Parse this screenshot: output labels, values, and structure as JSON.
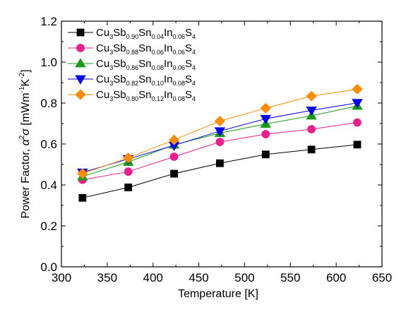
{
  "chart_data": {
    "type": "line",
    "xlabel": "Temperature [K]",
    "ylabel_prefix": "Power Factor, ",
    "ylabel_symbol": "α",
    "ylabel_symbol_sup": "2",
    "ylabel_symbol2": "σ",
    "ylabel_unit_open": " [mWm",
    "ylabel_unit_sup1": "-1",
    "ylabel_unit_mid": "K",
    "ylabel_unit_sup2": "-2",
    "ylabel_unit_close": "]",
    "xlim": [
      300,
      650
    ],
    "ylim": [
      0.0,
      1.2
    ],
    "xticks": [
      300,
      350,
      400,
      450,
      500,
      550,
      600,
      650
    ],
    "yticks": [
      "0.0",
      "0.2",
      "0.4",
      "0.6",
      "0.8",
      "1.0",
      "1.2"
    ],
    "grid": false,
    "legend_position": "top-left",
    "x": [
      323,
      373,
      423,
      473,
      523,
      573,
      623
    ],
    "series": [
      {
        "name": "Cu3Sb0.90Sn0.04In0.06S4",
        "name_parts": [
          [
            "Cu",
            ""
          ],
          [
            "3",
            "sub"
          ],
          [
            "Sb",
            ""
          ],
          [
            "0.90",
            "sub"
          ],
          [
            "Sn",
            ""
          ],
          [
            "0.04",
            "sub"
          ],
          [
            "In",
            ""
          ],
          [
            "0.06",
            "sub"
          ],
          [
            "S",
            ""
          ],
          [
            "4",
            "sub"
          ]
        ],
        "color": "#000000",
        "marker": "square",
        "values": [
          0.337,
          0.388,
          0.455,
          0.506,
          0.549,
          0.573,
          0.597
        ]
      },
      {
        "name": "Cu3Sb0.88Sn0.06In0.06S4",
        "name_parts": [
          [
            "Cu",
            ""
          ],
          [
            "3",
            "sub"
          ],
          [
            "Sb",
            ""
          ],
          [
            "0.88",
            "sub"
          ],
          [
            "Sn",
            ""
          ],
          [
            "0.06",
            "sub"
          ],
          [
            "In",
            ""
          ],
          [
            "0.06",
            "sub"
          ],
          [
            "S",
            ""
          ],
          [
            "4",
            "sub"
          ]
        ],
        "color": "#ec1e8c",
        "marker": "circle",
        "values": [
          0.425,
          0.465,
          0.538,
          0.61,
          0.648,
          0.672,
          0.705
        ]
      },
      {
        "name": "Cu3Sb0.86Sn0.08In0.06S4",
        "name_parts": [
          [
            "Cu",
            ""
          ],
          [
            "3",
            "sub"
          ],
          [
            "Sb",
            ""
          ],
          [
            "0.86",
            "sub"
          ],
          [
            "Sn",
            ""
          ],
          [
            "0.08",
            "sub"
          ],
          [
            "In",
            ""
          ],
          [
            "0.06",
            "sub"
          ],
          [
            "S",
            ""
          ],
          [
            "4",
            "sub"
          ]
        ],
        "color": "#1a9a1a",
        "marker": "triangle-up",
        "values": [
          0.441,
          0.512,
          0.596,
          0.653,
          0.698,
          0.738,
          0.786
        ]
      },
      {
        "name": "Cu3Sb0.82Sn0.10In0.08S4",
        "name_parts": [
          [
            "Cu",
            ""
          ],
          [
            "3",
            "sub"
          ],
          [
            "Sb",
            ""
          ],
          [
            "0.82",
            "sub"
          ],
          [
            "Sn",
            ""
          ],
          [
            "0.10",
            "sub"
          ],
          [
            "In",
            ""
          ],
          [
            "0.08",
            "sub"
          ],
          [
            "S",
            ""
          ],
          [
            "4",
            "sub"
          ]
        ],
        "color": "#0000ee",
        "marker": "triangle-down",
        "values": [
          0.461,
          0.527,
          0.593,
          0.663,
          0.723,
          0.764,
          0.801
        ]
      },
      {
        "name": "Cu3Sb0.80Sn0.12In0.08S4",
        "name_parts": [
          [
            "Cu",
            ""
          ],
          [
            "3",
            "sub"
          ],
          [
            "Sb",
            ""
          ],
          [
            "0.80",
            "sub"
          ],
          [
            "Sn",
            ""
          ],
          [
            "0.12",
            "sub"
          ],
          [
            "In",
            ""
          ],
          [
            "0.08",
            "sub"
          ],
          [
            "S",
            ""
          ],
          [
            "4",
            "sub"
          ]
        ],
        "color": "#ff8c00",
        "marker": "diamond",
        "values": [
          0.456,
          0.532,
          0.62,
          0.712,
          0.775,
          0.834,
          0.868
        ]
      }
    ]
  }
}
